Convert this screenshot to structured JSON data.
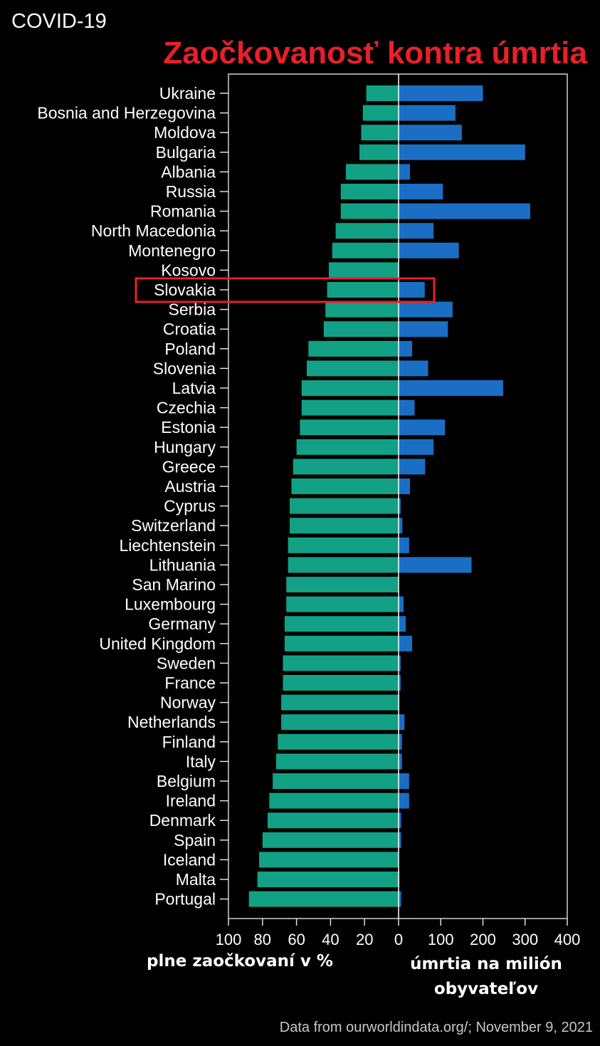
{
  "header": {
    "topline": "COVID-19",
    "title": "Zaočkovanosť kontra úmrtia"
  },
  "footer": {
    "left_label": "plne zaočkovaní v %",
    "right_label": "úmrtia na milión obyvateľov",
    "source": "Data from ourworldindata.org/;  November 9, 2021"
  },
  "colors": {
    "vaccination": "#12a184",
    "deaths": "#1a6fc4",
    "highlight": "#e8202a",
    "frame": "#cfcfcf"
  },
  "chart_data": {
    "type": "bar",
    "orientation": "horizontal",
    "categories": [
      "Ukraine",
      "Bosnia and Herzegovina",
      "Moldova",
      "Bulgaria",
      "Albania",
      "Russia",
      "Romania",
      "North Macedonia",
      "Montenegro",
      "Kosovo",
      "Slovakia",
      "Serbia",
      "Croatia",
      "Poland",
      "Slovenia",
      "Latvia",
      "Czechia",
      "Estonia",
      "Hungary",
      "Greece",
      "Austria",
      "Cyprus",
      "Switzerland",
      "Liechtenstein",
      "Lithuania",
      "San Marino",
      "Luxembourg",
      "Germany",
      "United Kingdom",
      "Sweden",
      "France",
      "Norway",
      "Netherlands",
      "Finland",
      "Italy",
      "Belgium",
      "Ireland",
      "Denmark",
      "Spain",
      "Iceland",
      "Malta",
      "Portugal"
    ],
    "series": [
      {
        "side": "left",
        "values": [
          19,
          21,
          22,
          23,
          31,
          34,
          34,
          37,
          39,
          41,
          42,
          43,
          44,
          53,
          54,
          57,
          57,
          58,
          60,
          62,
          63,
          64,
          64,
          65,
          65,
          66,
          66,
          67,
          67,
          68,
          68,
          69,
          69,
          71,
          72,
          74,
          76,
          77,
          80,
          82,
          83,
          88
        ]
      },
      {
        "side": "right",
        "values": [
          200,
          135,
          150,
          300,
          27,
          105,
          312,
          83,
          143,
          0,
          62,
          128,
          117,
          32,
          70,
          248,
          38,
          110,
          83,
          63,
          27,
          5,
          9,
          25,
          173,
          0,
          12,
          17,
          32,
          5,
          5,
          2,
          14,
          8,
          8,
          25,
          25,
          6,
          6,
          0,
          2,
          6
        ]
      }
    ],
    "left_axis": {
      "range": [
        100,
        0
      ],
      "ticks": [
        100,
        80,
        60,
        40,
        20,
        0
      ]
    },
    "right_axis": {
      "range": [
        0,
        400
      ],
      "ticks": [
        0,
        100,
        200,
        300,
        400
      ]
    },
    "highlighted_category": "Slovakia"
  }
}
